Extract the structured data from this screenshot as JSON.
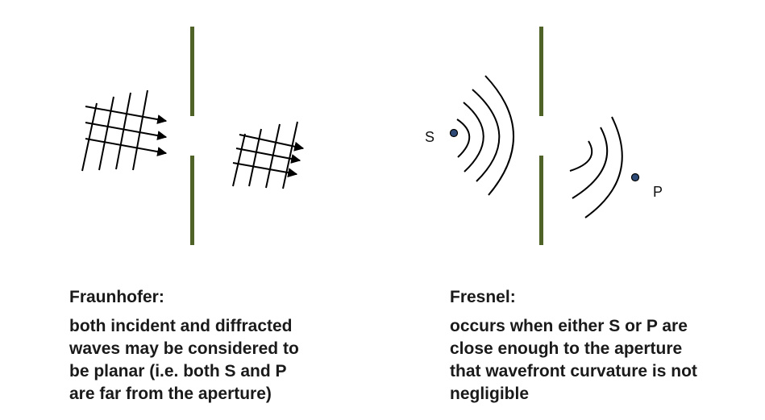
{
  "fraunhofer": {
    "heading": "Fraunhofer:",
    "lines": [
      "both incident and diffracted",
      "waves may be considered to",
      "be planar (i.e. both S and P",
      "are far from the aperture)"
    ]
  },
  "fresnel": {
    "heading": "Fresnel:",
    "lines": [
      "occurs when either S or P are",
      "close enough to the aperture",
      "that wavefront curvature is not",
      "negligible"
    ],
    "source_label": "S",
    "point_label": "P"
  },
  "colors": {
    "aperture": "#4f6228",
    "lines": "#000000",
    "point_fill": "#2e4b78"
  }
}
